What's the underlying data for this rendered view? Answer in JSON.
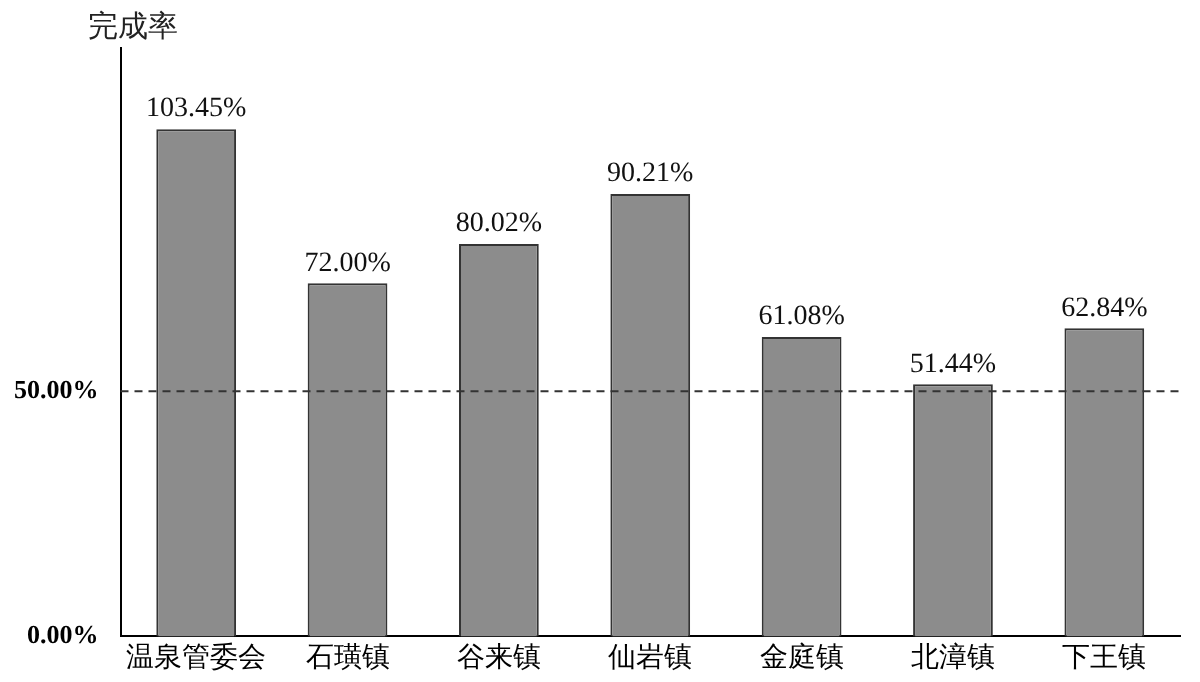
{
  "chart_data": {
    "type": "bar",
    "ylabel": "完成率",
    "categories": [
      "温泉管委会",
      "石璜镇",
      "谷来镇",
      "仙岩镇",
      "金庭镇",
      "北漳镇",
      "下王镇"
    ],
    "values": [
      103.45,
      72.0,
      80.02,
      90.21,
      61.08,
      51.44,
      62.84
    ],
    "value_labels": [
      "103.45%",
      "72.00%",
      "80.02%",
      "90.21%",
      "61.08%",
      "51.44%",
      "62.84%"
    ],
    "color": "#8c8c8c",
    "ylim": [
      0,
      120
    ],
    "yticks": [
      {
        "value": 0,
        "label": "0.00%"
      },
      {
        "value": 50,
        "label": "50.00%"
      }
    ],
    "ref_lines": [
      {
        "axis": "y",
        "value": 50,
        "line_style": "dashed",
        "color": "#333333"
      }
    ],
    "grid": false,
    "legend": false
  }
}
